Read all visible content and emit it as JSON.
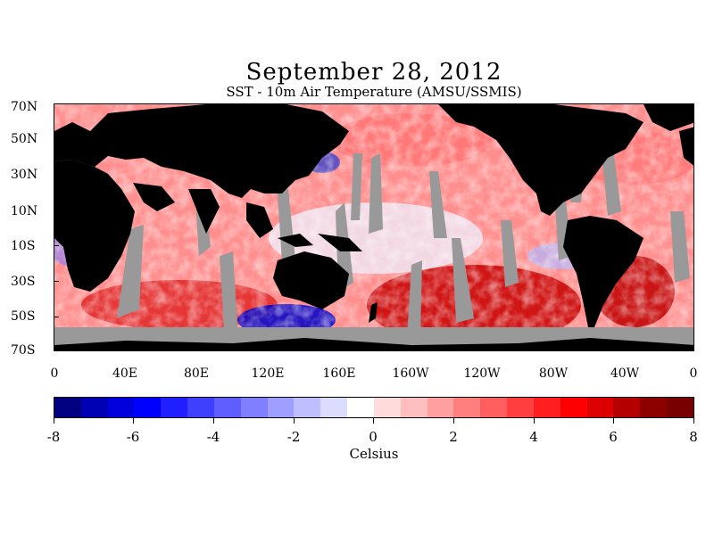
{
  "title": "September 28, 2012",
  "subtitle": "SST - 10m Air Temperature (AMSU/SSMIS)",
  "map": {
    "lat_labels": [
      "70N",
      "50N",
      "30N",
      "10N",
      "10S",
      "30S",
      "50S",
      "70S"
    ],
    "lon_labels": [
      "0",
      "40E",
      "80E",
      "120E",
      "160E",
      "160W",
      "120W",
      "80W",
      "40W",
      "0"
    ],
    "land_color": "#000000",
    "missing_color": "#999999"
  },
  "colorbar": {
    "tick_labels": [
      "-8",
      "-6",
      "-4",
      "-2",
      "0",
      "2",
      "4",
      "6",
      "8"
    ],
    "unit": "Celsius",
    "colors": [
      "#000080",
      "#0000b4",
      "#0000dc",
      "#0000ff",
      "#1f1fff",
      "#3f3fff",
      "#5f5fff",
      "#7f7fff",
      "#9f9fff",
      "#bfbfff",
      "#dcdcff",
      "#ffffff",
      "#ffdcdc",
      "#ffbfbf",
      "#ff9f9f",
      "#ff7f7f",
      "#ff5f5f",
      "#ff3f3f",
      "#ff1f1f",
      "#ff0000",
      "#dc0000",
      "#b40000",
      "#8c0000",
      "#780000"
    ]
  },
  "chart_data": {
    "type": "heatmap",
    "title": "September 28, 2012",
    "subtitle": "SST - 10m Air Temperature (AMSU/SSMIS)",
    "x_tick_labels": [
      "0",
      "40E",
      "80E",
      "120E",
      "160E",
      "160W",
      "120W",
      "80W",
      "40W",
      "0"
    ],
    "y_tick_labels": [
      "70N",
      "50N",
      "30N",
      "10N",
      "10S",
      "30S",
      "50S",
      "70S"
    ],
    "colorbar_range": [
      -8,
      8
    ],
    "colorbar_ticks": [
      -8,
      -6,
      -4,
      -2,
      0,
      2,
      4,
      6,
      8
    ],
    "colorbar_label": "Celsius"
  }
}
